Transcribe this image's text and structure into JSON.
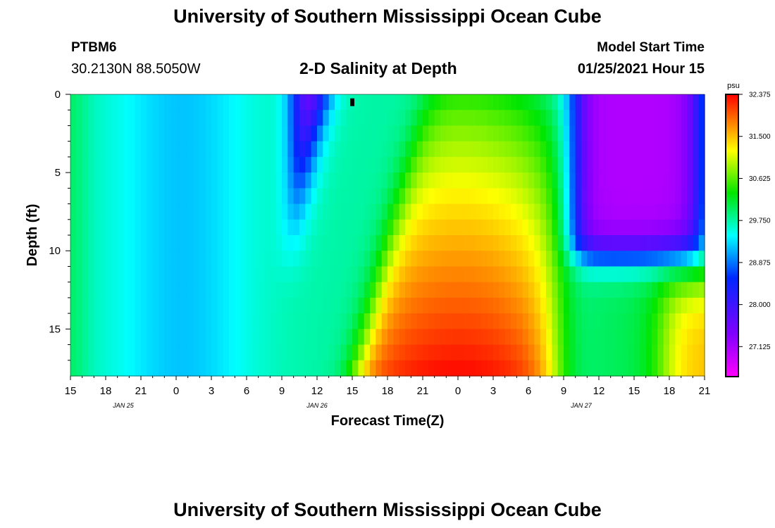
{
  "header": {
    "title": "University of Southern Mississippi Ocean Cube",
    "station": "PTBM6",
    "coords": "30.2130N 88.5050W",
    "subtitle": "2-D Salinity at Depth",
    "start_label": "Model Start Time",
    "start_value": "01/25/2021 Hour 15"
  },
  "footer": {
    "title": "University of Southern Mississippi Ocean Cube"
  },
  "chart_data": {
    "type": "heatmap",
    "title": "2-D Salinity at Depth",
    "xlabel": "Forecast Time(Z)",
    "ylabel": "Depth (ft)",
    "x_range_hours": [
      0,
      54
    ],
    "y_range_ft": [
      0,
      18
    ],
    "x_tick_labels": [
      "15",
      "18",
      "21",
      "0",
      "3",
      "6",
      "9",
      "12",
      "15",
      "18",
      "21",
      "0",
      "3",
      "6",
      "9",
      "12",
      "15",
      "18",
      "21"
    ],
    "x_tick_hours": [
      0,
      3,
      6,
      9,
      12,
      15,
      18,
      21,
      24,
      27,
      30,
      33,
      36,
      39,
      42,
      45,
      48,
      51,
      54
    ],
    "date_labels": [
      {
        "text": "JAN 25",
        "hour": 4.5
      },
      {
        "text": "JAN 26",
        "hour": 21
      },
      {
        "text": "JAN 27",
        "hour": 43.5
      }
    ],
    "y_ticks": [
      0,
      5,
      10,
      15
    ],
    "y_tick_labels": [
      "0",
      "5",
      "10",
      "15"
    ],
    "colorbar": {
      "unit": "psu",
      "min": 26.5,
      "max": 32.375,
      "tick_labels": [
        "32.375",
        "31.500",
        "30.625",
        "29.750",
        "28.875",
        "28.000",
        "27.125"
      ],
      "tick_values": [
        32.375,
        31.5,
        30.625,
        29.75,
        28.875,
        28.0,
        27.125
      ]
    },
    "marker": {
      "hour": 24,
      "depth_ft": 0.3
    },
    "grid": {
      "x_step_hours": 0.5,
      "y_step_ft": 1,
      "note": "Modeled salinity (psu) estimated from the color field."
    },
    "colors": {
      "low": "#ff00ff",
      "high": "#ff0000"
    }
  }
}
